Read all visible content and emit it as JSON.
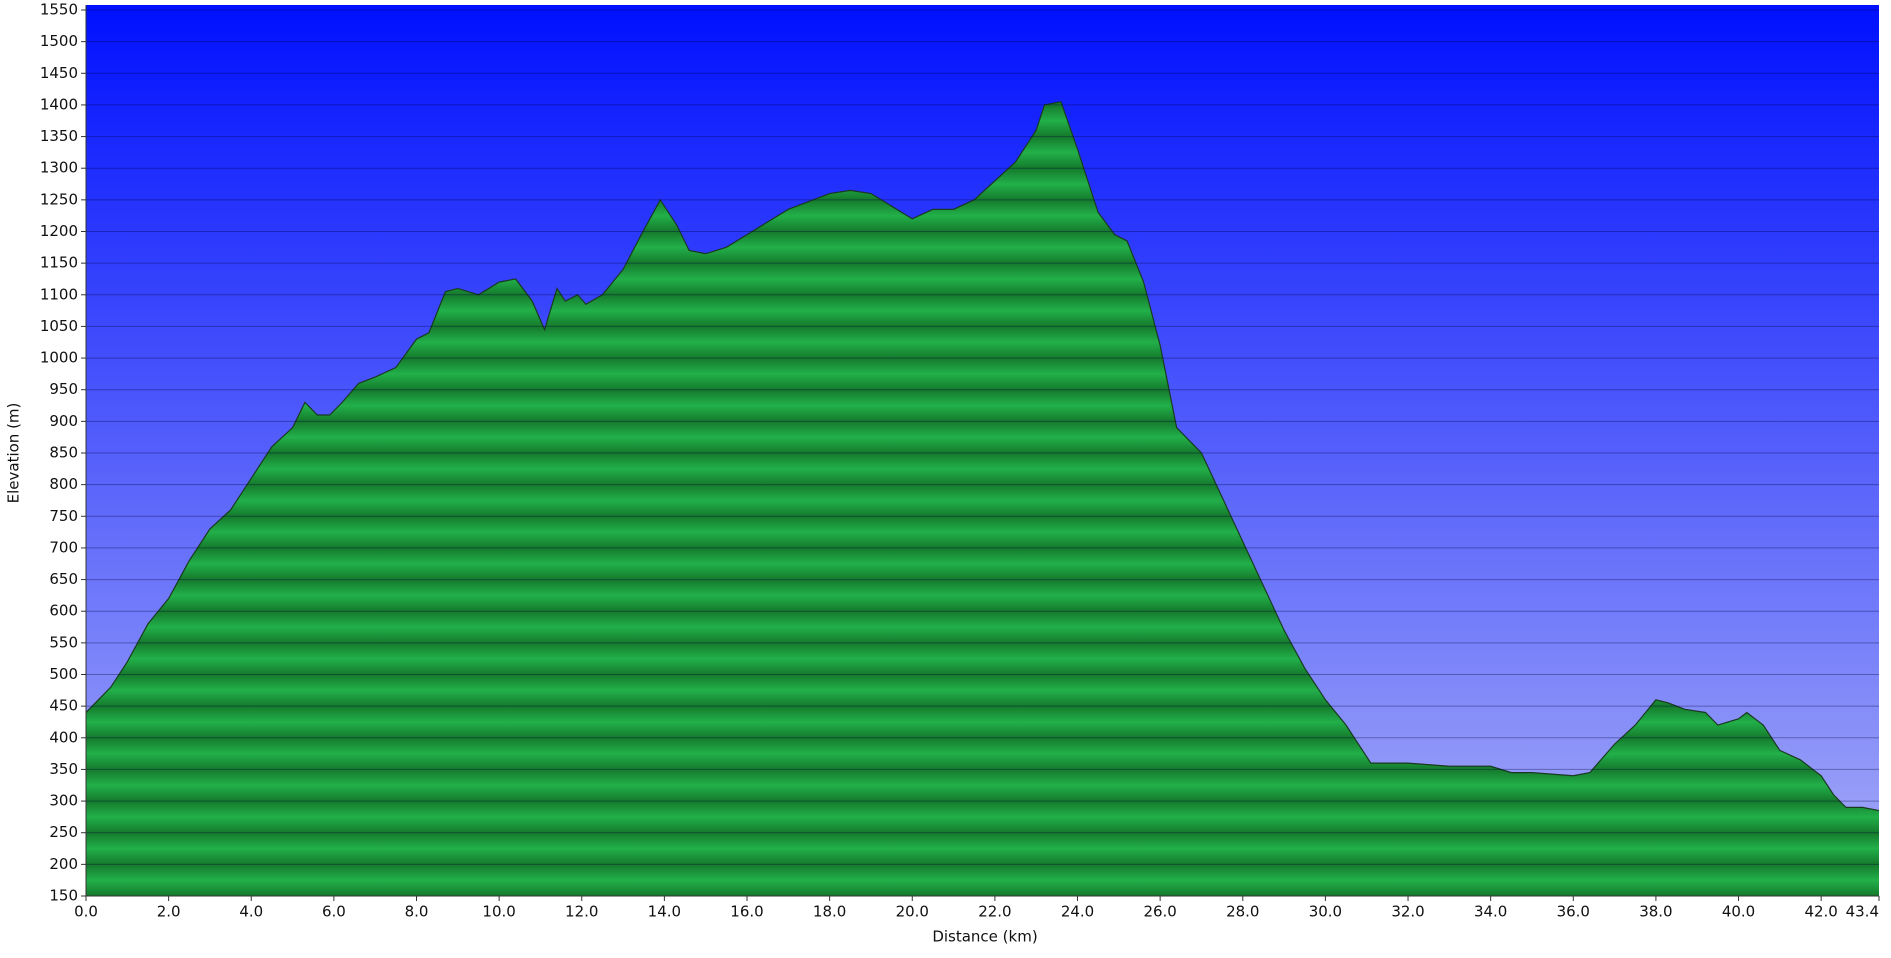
{
  "chart_data": {
    "type": "area",
    "x_label": "Distance  (km)",
    "y_label": "Elevation (m)",
    "x": [
      0,
      0.3,
      0.6,
      1.0,
      1.5,
      2.0,
      2.5,
      3.0,
      3.5,
      4.0,
      4.5,
      5.0,
      5.3,
      5.6,
      5.9,
      6.2,
      6.6,
      7.0,
      7.5,
      8.0,
      8.3,
      8.7,
      9.0,
      9.5,
      10.0,
      10.4,
      10.8,
      11.1,
      11.4,
      11.6,
      11.9,
      12.1,
      12.5,
      13.0,
      13.4,
      13.9,
      14.3,
      14.6,
      15.0,
      15.5,
      16.0,
      17.0,
      18.0,
      18.5,
      19.0,
      19.5,
      20.0,
      20.5,
      21.0,
      21.5,
      22.0,
      22.5,
      23.0,
      23.2,
      23.6,
      24.0,
      24.5,
      24.9,
      25.2,
      25.6,
      26.0,
      26.4,
      27.0,
      27.5,
      28.0,
      28.5,
      29.0,
      29.5,
      30.0,
      30.5,
      31.0,
      31.1,
      32.0,
      33.0,
      34.0,
      34.5,
      35.0,
      36.0,
      36.4,
      37.0,
      37.5,
      38.0,
      38.3,
      38.7,
      39.2,
      39.5,
      40.0,
      40.2,
      40.6,
      41.0,
      41.5,
      42.0,
      42.3,
      42.6,
      43.0,
      43.4
    ],
    "values": [
      440,
      460,
      480,
      520,
      580,
      620,
      680,
      730,
      760,
      810,
      860,
      890,
      930,
      910,
      910,
      930,
      960,
      970,
      985,
      1030,
      1040,
      1105,
      1110,
      1100,
      1120,
      1125,
      1090,
      1045,
      1110,
      1090,
      1100,
      1085,
      1100,
      1140,
      1190,
      1250,
      1210,
      1170,
      1165,
      1175,
      1195,
      1235,
      1260,
      1265,
      1260,
      1240,
      1220,
      1235,
      1235,
      1250,
      1280,
      1310,
      1360,
      1400,
      1405,
      1330,
      1230,
      1195,
      1185,
      1120,
      1020,
      890,
      850,
      780,
      710,
      640,
      570,
      510,
      460,
      420,
      370,
      360,
      360,
      355,
      355,
      345,
      345,
      340,
      345,
      390,
      420,
      460,
      455,
      445,
      440,
      420,
      430,
      440,
      420,
      380,
      365,
      340,
      310,
      290,
      290,
      285
    ],
    "color": "#22b04a",
    "background_top": "#0010ff",
    "background_bottom": "#a8aef7",
    "xlim": [
      0,
      43.4
    ],
    "ylim": [
      150,
      1550
    ],
    "xticks": [
      {
        "value": 0,
        "label": "0.0"
      },
      {
        "value": 2,
        "label": "2.0"
      },
      {
        "value": 4,
        "label": "4.0"
      },
      {
        "value": 6,
        "label": "6.0"
      },
      {
        "value": 8,
        "label": "8.0"
      },
      {
        "value": 10,
        "label": "10.0"
      },
      {
        "value": 12,
        "label": "12.0"
      },
      {
        "value": 14,
        "label": "14.0"
      },
      {
        "value": 16,
        "label": "16.0"
      },
      {
        "value": 18,
        "label": "18.0"
      },
      {
        "value": 20,
        "label": "20.0"
      },
      {
        "value": 22,
        "label": "22.0"
      },
      {
        "value": 24,
        "label": "24.0"
      },
      {
        "value": 26,
        "label": "26.0"
      },
      {
        "value": 28,
        "label": "28.0"
      },
      {
        "value": 30,
        "label": "30.0"
      },
      {
        "value": 32,
        "label": "32.0"
      },
      {
        "value": 34,
        "label": "34.0"
      },
      {
        "value": 36,
        "label": "36.0"
      },
      {
        "value": 38,
        "label": "38.0"
      },
      {
        "value": 40,
        "label": "40.0"
      },
      {
        "value": 42,
        "label": "42.0"
      },
      {
        "value": 43.4,
        "label": "43.4"
      }
    ],
    "yticks": [
      150,
      200,
      250,
      300,
      350,
      400,
      450,
      500,
      550,
      600,
      650,
      700,
      750,
      800,
      850,
      900,
      950,
      1000,
      1050,
      1100,
      1150,
      1200,
      1250,
      1300,
      1350,
      1400,
      1450,
      1500,
      1550
    ],
    "grid": true
  }
}
